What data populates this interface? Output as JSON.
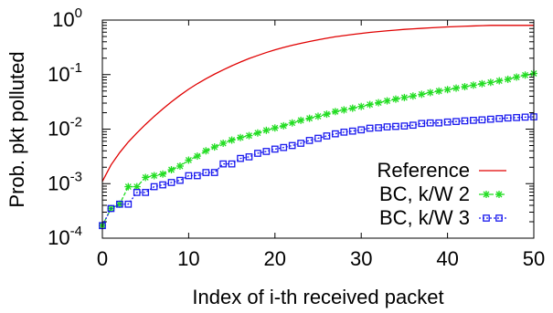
{
  "chart_data": {
    "type": "line",
    "title": "",
    "xlabel": "Index of i-th received packet",
    "ylabel": "Prob. pkt polluted",
    "xlim": [
      0,
      50
    ],
    "ylim_exp": [
      -4,
      0
    ],
    "yscale": "log",
    "grid": false,
    "legend_position": "bottom-right",
    "x_ticks": [
      {
        "value": 0,
        "label": "0"
      },
      {
        "value": 10,
        "label": "10"
      },
      {
        "value": 20,
        "label": "20"
      },
      {
        "value": 30,
        "label": "30"
      },
      {
        "value": 40,
        "label": "40"
      },
      {
        "value": 50,
        "label": "50"
      }
    ],
    "y_ticks": [
      {
        "exp": 0,
        "base": "10",
        "sup": "0"
      },
      {
        "exp": -1,
        "base": "10",
        "sup": "-1"
      },
      {
        "exp": -2,
        "base": "10",
        "sup": "-2"
      },
      {
        "exp": -3,
        "base": "10",
        "sup": "-3"
      },
      {
        "exp": -4,
        "base": "10",
        "sup": "-4"
      }
    ],
    "series": [
      {
        "name": "Reference",
        "color": "#e00000",
        "marker": "none",
        "x": [
          0,
          1,
          2,
          3,
          4,
          5,
          6,
          7,
          8,
          9,
          10,
          11,
          12,
          13,
          14,
          15,
          16,
          17,
          18,
          19,
          20,
          21,
          22,
          23,
          24,
          25,
          26,
          27,
          28,
          29,
          30,
          31,
          32,
          33,
          34,
          35,
          36,
          37,
          38,
          39,
          40,
          41,
          42,
          43,
          44,
          45,
          46,
          47,
          48,
          49,
          50
        ],
        "y": [
          0.0011,
          0.0022,
          0.0037,
          0.0058,
          0.0085,
          0.0122,
          0.0171,
          0.0235,
          0.0316,
          0.0417,
          0.054,
          0.068,
          0.084,
          0.102,
          0.122,
          0.145,
          0.17,
          0.197,
          0.224,
          0.254,
          0.285,
          0.315,
          0.345,
          0.375,
          0.405,
          0.435,
          0.465,
          0.495,
          0.52,
          0.545,
          0.57,
          0.595,
          0.615,
          0.635,
          0.655,
          0.675,
          0.69,
          0.705,
          0.72,
          0.735,
          0.75,
          0.76,
          0.77,
          0.78,
          0.79,
          0.8,
          0.8,
          0.8,
          0.8,
          0.8,
          0.8
        ]
      },
      {
        "name": "BC, k/W 2",
        "color": "#22dd22",
        "marker": "star",
        "x": [
          0,
          1,
          2,
          3,
          4,
          5,
          6,
          7,
          8,
          9,
          10,
          11,
          12,
          13,
          14,
          15,
          16,
          17,
          18,
          19,
          20,
          21,
          22,
          23,
          24,
          25,
          26,
          27,
          28,
          29,
          30,
          31,
          32,
          33,
          34,
          35,
          36,
          37,
          38,
          39,
          40,
          41,
          42,
          43,
          44,
          45,
          46,
          47,
          48,
          49,
          50
        ],
        "y": [
          0.00017,
          0.00035,
          0.00042,
          0.00088,
          0.00088,
          0.0013,
          0.0014,
          0.0015,
          0.0018,
          0.0021,
          0.0027,
          0.0032,
          0.004,
          0.0047,
          0.0055,
          0.0063,
          0.007,
          0.0076,
          0.0085,
          0.0095,
          0.0105,
          0.0115,
          0.013,
          0.0145,
          0.0158,
          0.0172,
          0.0188,
          0.021,
          0.0225,
          0.0242,
          0.026,
          0.0282,
          0.0305,
          0.033,
          0.0355,
          0.038,
          0.0405,
          0.0435,
          0.0468,
          0.05,
          0.053,
          0.0565,
          0.06,
          0.064,
          0.068,
          0.072,
          0.077,
          0.082,
          0.09,
          0.098,
          0.105
        ]
      },
      {
        "name": "BC, k/W 3",
        "color": "#1a1aee",
        "marker": "square",
        "x": [
          0,
          1,
          2,
          3,
          4,
          5,
          6,
          7,
          8,
          9,
          10,
          11,
          12,
          13,
          14,
          15,
          16,
          17,
          18,
          19,
          20,
          21,
          22,
          23,
          24,
          25,
          26,
          27,
          28,
          29,
          30,
          31,
          32,
          33,
          34,
          35,
          36,
          37,
          38,
          39,
          40,
          41,
          42,
          43,
          44,
          45,
          46,
          47,
          48,
          49,
          50
        ],
        "y": [
          0.00017,
          0.00035,
          0.00042,
          0.00042,
          0.00069,
          0.00069,
          0.00088,
          0.00095,
          0.00105,
          0.00115,
          0.0014,
          0.0014,
          0.0016,
          0.0016,
          0.0023,
          0.0023,
          0.0029,
          0.0031,
          0.0036,
          0.0039,
          0.0043,
          0.0046,
          0.005,
          0.0055,
          0.0062,
          0.0068,
          0.0075,
          0.0082,
          0.0088,
          0.0092,
          0.0097,
          0.0104,
          0.0106,
          0.011,
          0.0112,
          0.0114,
          0.0118,
          0.0127,
          0.013,
          0.013,
          0.0135,
          0.0138,
          0.0142,
          0.0145,
          0.0148,
          0.0152,
          0.0156,
          0.016,
          0.0163,
          0.0166,
          0.0168
        ]
      }
    ]
  }
}
